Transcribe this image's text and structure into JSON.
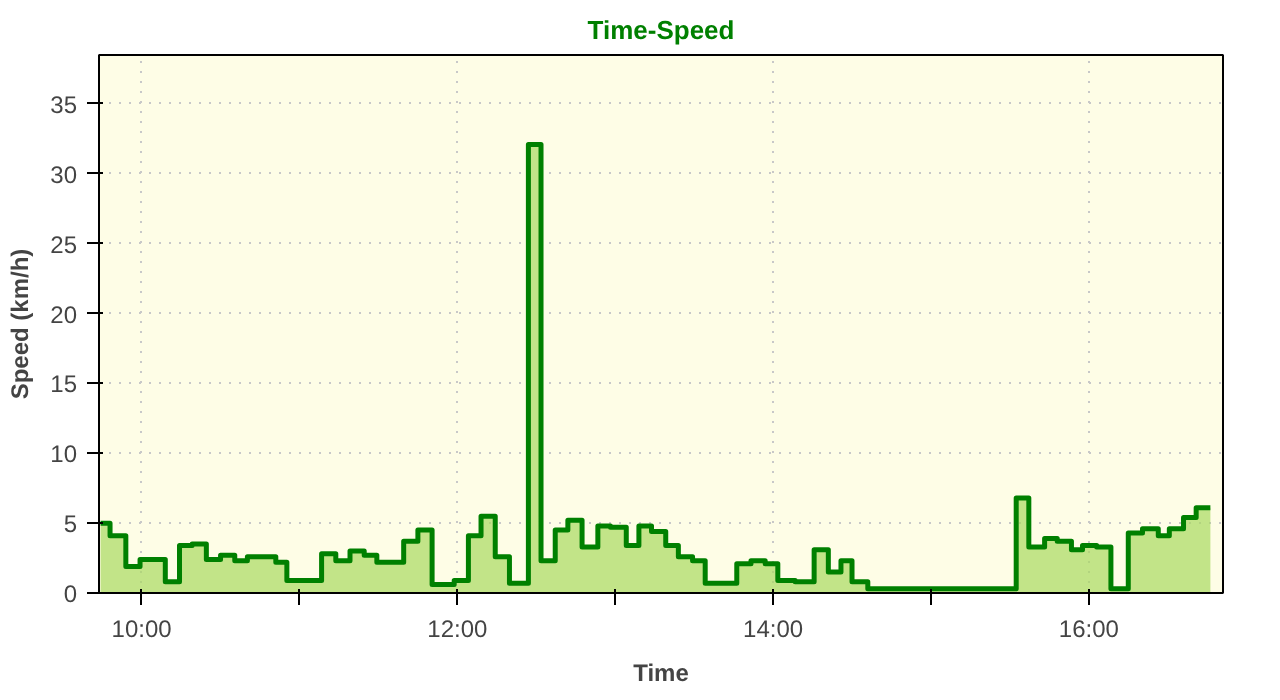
{
  "chart_data": {
    "type": "area",
    "title": "Time-Speed",
    "xlabel": "Time",
    "ylabel": "Speed (km/h)",
    "x": [
      9.74,
      9.8,
      9.8,
      9.9,
      9.9,
      9.99,
      9.99,
      10.15,
      10.15,
      10.24,
      10.24,
      10.32,
      10.32,
      10.41,
      10.41,
      10.5,
      10.5,
      10.59,
      10.59,
      10.67,
      10.67,
      10.85,
      10.85,
      10.92,
      10.92,
      11.14,
      11.14,
      11.23,
      11.23,
      11.32,
      11.32,
      11.41,
      11.41,
      11.49,
      11.49,
      11.66,
      11.66,
      11.75,
      11.75,
      11.84,
      11.84,
      11.98,
      11.98,
      12.07,
      12.07,
      12.15,
      12.15,
      12.24,
      12.24,
      12.33,
      12.33,
      12.45,
      12.45,
      12.53,
      12.53,
      12.62,
      12.62,
      12.7,
      12.7,
      12.79,
      12.79,
      12.89,
      12.89,
      12.97,
      12.97,
      13.07,
      13.07,
      13.15,
      13.15,
      13.23,
      13.23,
      13.32,
      13.32,
      13.4,
      13.4,
      13.49,
      13.49,
      13.57,
      13.57,
      13.77,
      13.77,
      13.86,
      13.86,
      13.95,
      13.95,
      14.03,
      14.03,
      14.14,
      14.14,
      14.26,
      14.26,
      14.35,
      14.35,
      14.43,
      14.43,
      14.5,
      14.5,
      14.6,
      14.6,
      15.54,
      15.54,
      15.62,
      15.62,
      15.72,
      15.72,
      15.8,
      15.8,
      15.89,
      15.89,
      15.96,
      15.96,
      16.05,
      16.05,
      16.14,
      16.14,
      16.25,
      16.25,
      16.34,
      16.34,
      16.44,
      16.44,
      16.51,
      16.51,
      16.6,
      16.6,
      16.68,
      16.68,
      16.77
    ],
    "series": [
      {
        "color": "#008000",
        "values": [
          5.0,
          5.0,
          4.1,
          4.1,
          1.9,
          1.9,
          2.4,
          2.4,
          0.8,
          0.8,
          3.4,
          3.4,
          3.5,
          3.5,
          2.4,
          2.4,
          2.7,
          2.7,
          2.3,
          2.3,
          2.6,
          2.6,
          2.2,
          2.2,
          0.9,
          0.9,
          2.8,
          2.8,
          2.3,
          2.3,
          3.0,
          3.0,
          2.7,
          2.7,
          2.2,
          2.2,
          3.7,
          3.7,
          4.5,
          4.5,
          0.6,
          0.6,
          0.9,
          0.9,
          4.1,
          4.1,
          5.5,
          5.5,
          2.6,
          2.6,
          0.7,
          0.7,
          32.1,
          32.1,
          2.3,
          2.3,
          4.5,
          4.5,
          5.2,
          5.2,
          3.3,
          3.3,
          4.8,
          4.8,
          4.7,
          4.7,
          3.4,
          3.4,
          4.8,
          4.8,
          4.4,
          4.4,
          3.4,
          3.4,
          2.6,
          2.6,
          2.3,
          2.3,
          0.7,
          0.7,
          2.1,
          2.1,
          2.3,
          2.3,
          2.1,
          2.1,
          0.9,
          0.9,
          0.8,
          0.8,
          3.1,
          3.1,
          1.5,
          1.5,
          2.3,
          2.3,
          0.8,
          0.8,
          0.3,
          0.3,
          6.8,
          6.8,
          3.3,
          3.3,
          3.9,
          3.9,
          3.7,
          3.7,
          3.1,
          3.1,
          3.4,
          3.4,
          3.3,
          3.3,
          0.3,
          0.3,
          4.3,
          4.3,
          4.6,
          4.6,
          4.1,
          4.1,
          4.6,
          4.6,
          5.4,
          5.4,
          6.1,
          6.1
        ]
      }
    ],
    "xlim": [
      9.73,
      16.85
    ],
    "ylim": [
      0,
      38.5
    ],
    "xticks": [
      {
        "value": 10,
        "label": "10:00"
      },
      {
        "value": 11,
        "label": null
      },
      {
        "value": 12,
        "label": "12:00"
      },
      {
        "value": 13,
        "label": null
      },
      {
        "value": 14,
        "label": "14:00"
      },
      {
        "value": 15,
        "label": null
      },
      {
        "value": 16,
        "label": "16:00"
      }
    ],
    "yticks": [
      0,
      5,
      10,
      15,
      20,
      25,
      30,
      35
    ],
    "grid": true
  }
}
